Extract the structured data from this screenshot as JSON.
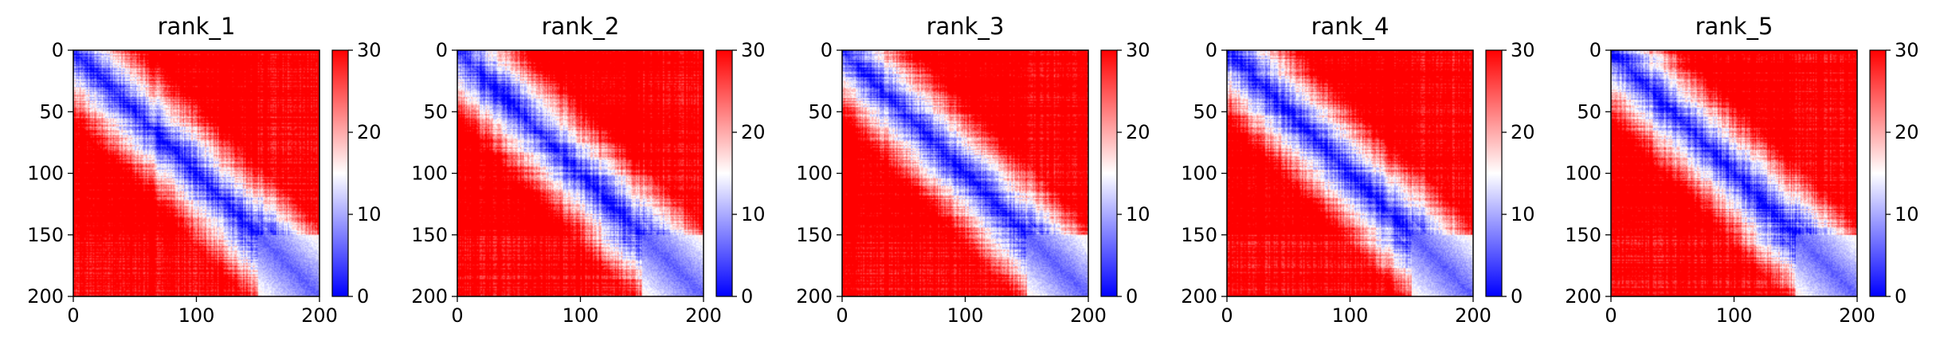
{
  "chart_data": [
    {
      "type": "heatmap",
      "title": "rank_1",
      "xlim": [
        0,
        200
      ],
      "ylim": [
        200,
        0
      ],
      "x_ticks": [
        0,
        100,
        200
      ],
      "y_ticks": [
        0,
        50,
        100,
        150,
        200
      ],
      "colorbar": {
        "min": 0,
        "max": 30,
        "ticks": [
          0,
          10,
          20,
          30
        ],
        "colors": [
          "#0000ff",
          "#ffffff",
          "#ff0000"
        ]
      },
      "domain_boundary": 150
    },
    {
      "type": "heatmap",
      "title": "rank_2",
      "xlim": [
        0,
        200
      ],
      "ylim": [
        200,
        0
      ],
      "x_ticks": [
        0,
        100,
        200
      ],
      "y_ticks": [
        0,
        50,
        100,
        150,
        200
      ],
      "colorbar": {
        "min": 0,
        "max": 30,
        "ticks": [
          0,
          10,
          20,
          30
        ],
        "colors": [
          "#0000ff",
          "#ffffff",
          "#ff0000"
        ]
      },
      "domain_boundary": 150
    },
    {
      "type": "heatmap",
      "title": "rank_3",
      "xlim": [
        0,
        200
      ],
      "ylim": [
        200,
        0
      ],
      "x_ticks": [
        0,
        100,
        200
      ],
      "y_ticks": [
        0,
        50,
        100,
        150,
        200
      ],
      "colorbar": {
        "min": 0,
        "max": 30,
        "ticks": [
          0,
          10,
          20,
          30
        ],
        "colors": [
          "#0000ff",
          "#ffffff",
          "#ff0000"
        ]
      },
      "domain_boundary": 150
    },
    {
      "type": "heatmap",
      "title": "rank_4",
      "xlim": [
        0,
        200
      ],
      "ylim": [
        200,
        0
      ],
      "x_ticks": [
        0,
        100,
        200
      ],
      "y_ticks": [
        0,
        50,
        100,
        150,
        200
      ],
      "colorbar": {
        "min": 0,
        "max": 30,
        "ticks": [
          0,
          10,
          20,
          30
        ],
        "colors": [
          "#0000ff",
          "#ffffff",
          "#ff0000"
        ]
      },
      "domain_boundary": 150
    },
    {
      "type": "heatmap",
      "title": "rank_5",
      "xlim": [
        0,
        200
      ],
      "ylim": [
        200,
        0
      ],
      "x_ticks": [
        0,
        100,
        200
      ],
      "y_ticks": [
        0,
        50,
        100,
        150,
        200
      ],
      "colorbar": {
        "min": 0,
        "max": 30,
        "ticks": [
          0,
          10,
          20,
          30
        ],
        "colors": [
          "#0000ff",
          "#ffffff",
          "#ff0000"
        ]
      },
      "domain_boundary": 150
    }
  ]
}
